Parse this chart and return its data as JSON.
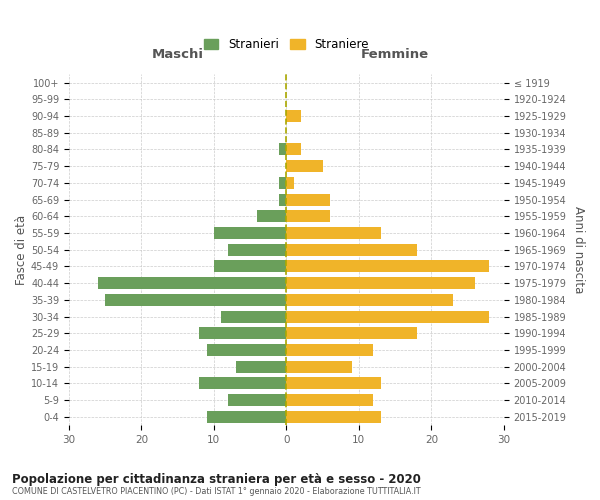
{
  "age_groups": [
    "0-4",
    "5-9",
    "10-14",
    "15-19",
    "20-24",
    "25-29",
    "30-34",
    "35-39",
    "40-44",
    "45-49",
    "50-54",
    "55-59",
    "60-64",
    "65-69",
    "70-74",
    "75-79",
    "80-84",
    "85-89",
    "90-94",
    "95-99",
    "100+"
  ],
  "birth_years": [
    "2015-2019",
    "2010-2014",
    "2005-2009",
    "2000-2004",
    "1995-1999",
    "1990-1994",
    "1985-1989",
    "1980-1984",
    "1975-1979",
    "1970-1974",
    "1965-1969",
    "1960-1964",
    "1955-1959",
    "1950-1954",
    "1945-1949",
    "1940-1944",
    "1935-1939",
    "1930-1934",
    "1925-1929",
    "1920-1924",
    "≤ 1919"
  ],
  "maschi": [
    11,
    8,
    12,
    7,
    11,
    12,
    9,
    25,
    26,
    10,
    8,
    10,
    4,
    1,
    1,
    0,
    1,
    0,
    0,
    0,
    0
  ],
  "femmine": [
    13,
    12,
    13,
    9,
    12,
    18,
    28,
    23,
    26,
    28,
    18,
    13,
    6,
    6,
    1,
    5,
    2,
    0,
    2,
    0,
    0
  ],
  "color_maschi": "#6a9f5b",
  "color_femmine": "#f0b429",
  "title": "Popolazione per cittadinanza straniera per età e sesso - 2020",
  "subtitle": "COMUNE DI CASTELVETRO PIACENTINO (PC) - Dati ISTAT 1° gennaio 2020 - Elaborazione TUTTITALIA.IT",
  "xlabel_left": "Maschi",
  "xlabel_right": "Femmine",
  "ylabel_left": "Fasce di età",
  "ylabel_right": "Anni di nascita",
  "legend_maschi": "Stranieri",
  "legend_femmine": "Straniere",
  "xlim": 30,
  "background_color": "#ffffff",
  "grid_color": "#cccccc",
  "dashed_line_color": "#aaa800"
}
